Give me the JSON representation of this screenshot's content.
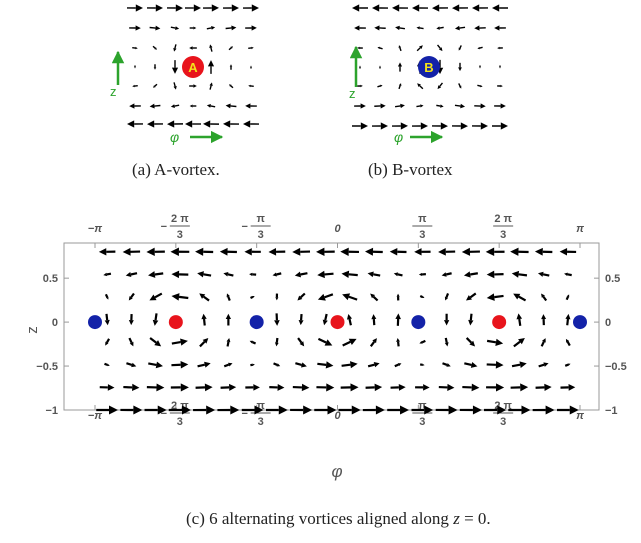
{
  "panel_a": {
    "caption": "(a) A-vortex.",
    "vortex_label": "A",
    "vertical_axis_label": "z",
    "horizontal_axis_label": "φ",
    "marker_color": "#e8141c",
    "text_color": "#f2e21a",
    "axis_arrow_color": "#2ca32c"
  },
  "panel_b": {
    "caption": "(b) B-vortex",
    "vortex_label": "B",
    "vertical_axis_label": "z",
    "horizontal_axis_label": "φ",
    "marker_color": "#1322a8",
    "text_color": "#f2e21a",
    "axis_arrow_color": "#2ca32c"
  },
  "panel_c": {
    "caption_prefix": "(c) 6 alternating vortices aligned along ",
    "caption_var": "z",
    "caption_suffix": " = 0.",
    "xlabel": "φ",
    "ylabel": "z",
    "x_ticks": [
      {
        "num": "",
        "label": "−π",
        "sign": ""
      },
      {
        "num": "2 π",
        "label": "3",
        "sign": "−"
      },
      {
        "num": "π",
        "label": "3",
        "sign": "−"
      },
      {
        "num": "",
        "label": "0",
        "sign": ""
      },
      {
        "num": "π",
        "label": "3",
        "sign": ""
      },
      {
        "num": "2 π",
        "label": "3",
        "sign": ""
      },
      {
        "num": "",
        "label": "π",
        "sign": ""
      }
    ],
    "y_ticks": [
      "0.5",
      "0",
      "−0.5",
      "−1"
    ],
    "vortex_colors": {
      "A": "#e8141c",
      "B": "#1322a8"
    }
  },
  "chart_data": {
    "type": "vector-field",
    "xlim": [
      -3.14159,
      3.14159
    ],
    "ylim": [
      -1,
      0.9
    ],
    "vortices": [
      {
        "kind": "B",
        "phi": -3.14159,
        "z": 0
      },
      {
        "kind": "A",
        "phi": -2.0944,
        "z": 0
      },
      {
        "kind": "B",
        "phi": -1.0472,
        "z": 0
      },
      {
        "kind": "A",
        "phi": 0,
        "z": 0
      },
      {
        "kind": "B",
        "phi": 1.0472,
        "z": 0
      },
      {
        "kind": "A",
        "phi": 2.0944,
        "z": 0
      },
      {
        "kind": "B",
        "phi": 3.14159,
        "z": 0
      }
    ]
  }
}
